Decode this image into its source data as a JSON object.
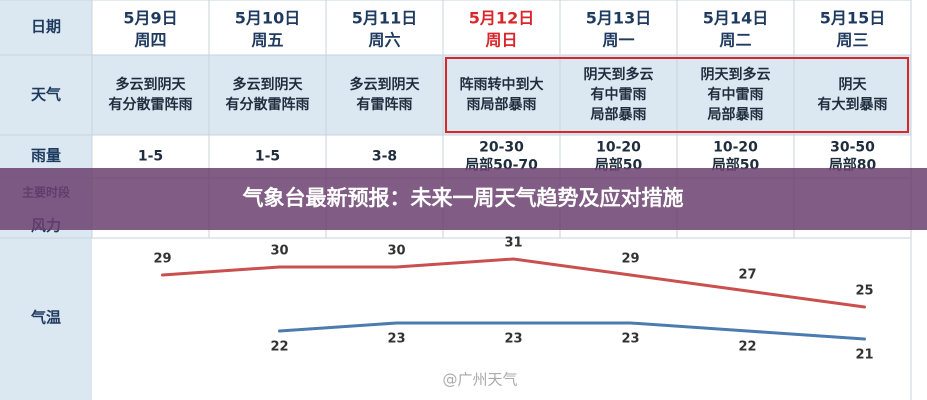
{
  "title": "气象台最新预报：未来一周天气趋势及应对措施",
  "watermark": "@广州天气",
  "table": {
    "header": {
      "label": "日期",
      "days": [
        {
          "date": "5月9日",
          "weekday": "周四"
        },
        {
          "date": "5月10日",
          "weekday": "周五"
        },
        {
          "date": "5月11日",
          "weekday": "周六"
        },
        {
          "date": "5月12日",
          "weekday": "周日"
        },
        {
          "date": "5月13日",
          "weekday": "周一"
        },
        {
          "date": "5月14日",
          "weekday": "周二"
        },
        {
          "date": "5月15日",
          "weekday": "周三"
        }
      ]
    },
    "weather": {
      "label": "天气",
      "cells": [
        [
          "多云到阴天",
          "有分散雷阵雨"
        ],
        [
          "多云到阴天",
          "有分散雷阵雨"
        ],
        [
          "多云到阴天",
          "有雷阵雨"
        ],
        [
          "阵雨转中到大",
          "雨局部暴雨"
        ],
        [
          "阴天到多云",
          "有中雷雨",
          "局部暴雨"
        ],
        [
          "阴天到多云",
          "有中雷雨",
          "局部暴雨"
        ],
        [
          "阴天",
          "有大到暴雨"
        ]
      ]
    },
    "rain": {
      "label": "雨量",
      "cells": [
        [
          "1-5"
        ],
        [
          "1-5"
        ],
        [
          "3-8"
        ],
        [
          "20-30",
          "局部50-70"
        ],
        [
          "10-20",
          "局部50"
        ],
        [
          "10-20",
          "局部50"
        ],
        [
          "30-50",
          "局部80"
        ]
      ]
    },
    "period": {
      "label": "主要时段"
    },
    "wind": {
      "label": "风力"
    },
    "temperature": {
      "label": "气温",
      "high": [
        29,
        30,
        30,
        31,
        29,
        27,
        25
      ],
      "low": [
        null,
        22,
        23,
        23,
        23,
        22,
        21
      ]
    }
  }
}
